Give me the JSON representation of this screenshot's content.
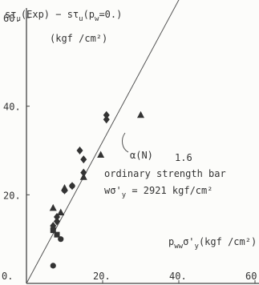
{
  "chart_data": {
    "type": "scatter",
    "ylabel": "sτu(Exp) − sτu(pw=0.)",
    "ylabel_unit": "(kgf /cm²)",
    "xlabel": "pww σ'y (kgf /cm²)",
    "xlim": [
      0,
      60
    ],
    "ylim": [
      0,
      60
    ],
    "x_ticks": [
      "0.",
      "20.",
      "40.",
      "60"
    ],
    "y_ticks": [
      "60.",
      "40.",
      "20."
    ],
    "reference_line": {
      "slope": 1.6,
      "intercept": 0,
      "x_range": [
        0,
        46
      ]
    },
    "annotations": [
      {
        "text": "α(N)"
      },
      {
        "text": "1.6"
      },
      {
        "text": "ordinary strength bar"
      },
      {
        "text": "wσ'y = 2921 kgf/cm²"
      }
    ],
    "series": [
      {
        "marker": "circle",
        "points": [
          [
            7,
            4
          ],
          [
            9,
            10
          ],
          [
            12,
            22
          ],
          [
            10,
            21
          ]
        ]
      },
      {
        "marker": "triangle",
        "points": [
          [
            7,
            17
          ],
          [
            9,
            16
          ],
          [
            15,
            24
          ],
          [
            19.5,
            29
          ],
          [
            30,
            38
          ],
          [
            10,
            21.5
          ]
        ]
      },
      {
        "marker": "diamond",
        "points": [
          [
            7,
            13
          ],
          [
            8,
            15
          ],
          [
            12,
            22
          ],
          [
            14,
            30
          ],
          [
            15,
            28
          ],
          [
            15,
            25
          ],
          [
            21,
            37
          ],
          [
            21,
            38
          ],
          [
            10,
            21
          ],
          [
            8,
            14
          ]
        ]
      },
      {
        "marker": "square",
        "points": [
          [
            7,
            12
          ],
          [
            8,
            11
          ]
        ]
      }
    ]
  }
}
